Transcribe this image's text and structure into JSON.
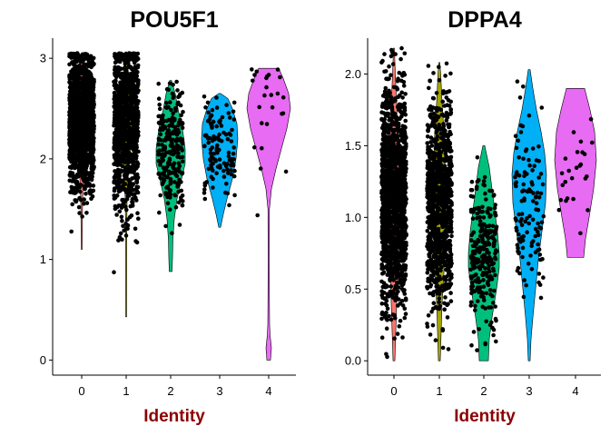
{
  "chart_data": [
    {
      "type": "violin",
      "title": "POU5F1",
      "xlabel": "Identity",
      "ylabel": "",
      "categories": [
        "0",
        "1",
        "2",
        "3",
        "4"
      ],
      "ylim": [
        -0.15,
        3.2
      ],
      "yticks": [
        "0",
        "1",
        "2",
        "3"
      ],
      "legend": "none",
      "colors": [
        "#F8766D",
        "#A3A500",
        "#00BF7D",
        "#00B0F6",
        "#E76BF3"
      ],
      "xlabel_color": "#8B0000",
      "series": [
        {
          "name": "0",
          "range": [
            1.1,
            3.05
          ],
          "median": 2.38,
          "points_approx": 1500
        },
        {
          "name": "1",
          "range": [
            0.43,
            3.05
          ],
          "median": 2.35,
          "points_approx": 1000
        },
        {
          "name": "2",
          "range": [
            0.88,
            2.78
          ],
          "median": 2.1,
          "points_approx": 250
        },
        {
          "name": "3",
          "range": [
            1.32,
            2.65
          ],
          "median": 2.1,
          "points_approx": 120
        },
        {
          "name": "4",
          "range": [
            0.0,
            2.9
          ],
          "median": 2.45,
          "points_approx": 25
        }
      ]
    },
    {
      "type": "violin",
      "title": "DPPA4",
      "xlabel": "Identity",
      "ylabel": "",
      "categories": [
        "0",
        "1",
        "2",
        "3",
        "4"
      ],
      "ylim": [
        -0.1,
        2.25
      ],
      "yticks": [
        "0.0",
        "0.5",
        "1.0",
        "1.5",
        "2.0"
      ],
      "legend": "none",
      "colors": [
        "#F8766D",
        "#A3A500",
        "#00BF7D",
        "#00B0F6",
        "#E76BF3"
      ],
      "xlabel_color": "#8B0000",
      "series": [
        {
          "name": "0",
          "range": [
            0.0,
            2.18
          ],
          "median": 1.15,
          "points_approx": 1500
        },
        {
          "name": "1",
          "range": [
            0.0,
            2.08
          ],
          "median": 1.1,
          "points_approx": 1000
        },
        {
          "name": "2",
          "range": [
            0.0,
            1.5
          ],
          "median": 0.72,
          "points_approx": 250
        },
        {
          "name": "3",
          "range": [
            0.0,
            2.03
          ],
          "median": 1.1,
          "points_approx": 120
        },
        {
          "name": "4",
          "range": [
            0.72,
            1.9
          ],
          "median": 1.35,
          "points_approx": 25
        }
      ]
    }
  ]
}
